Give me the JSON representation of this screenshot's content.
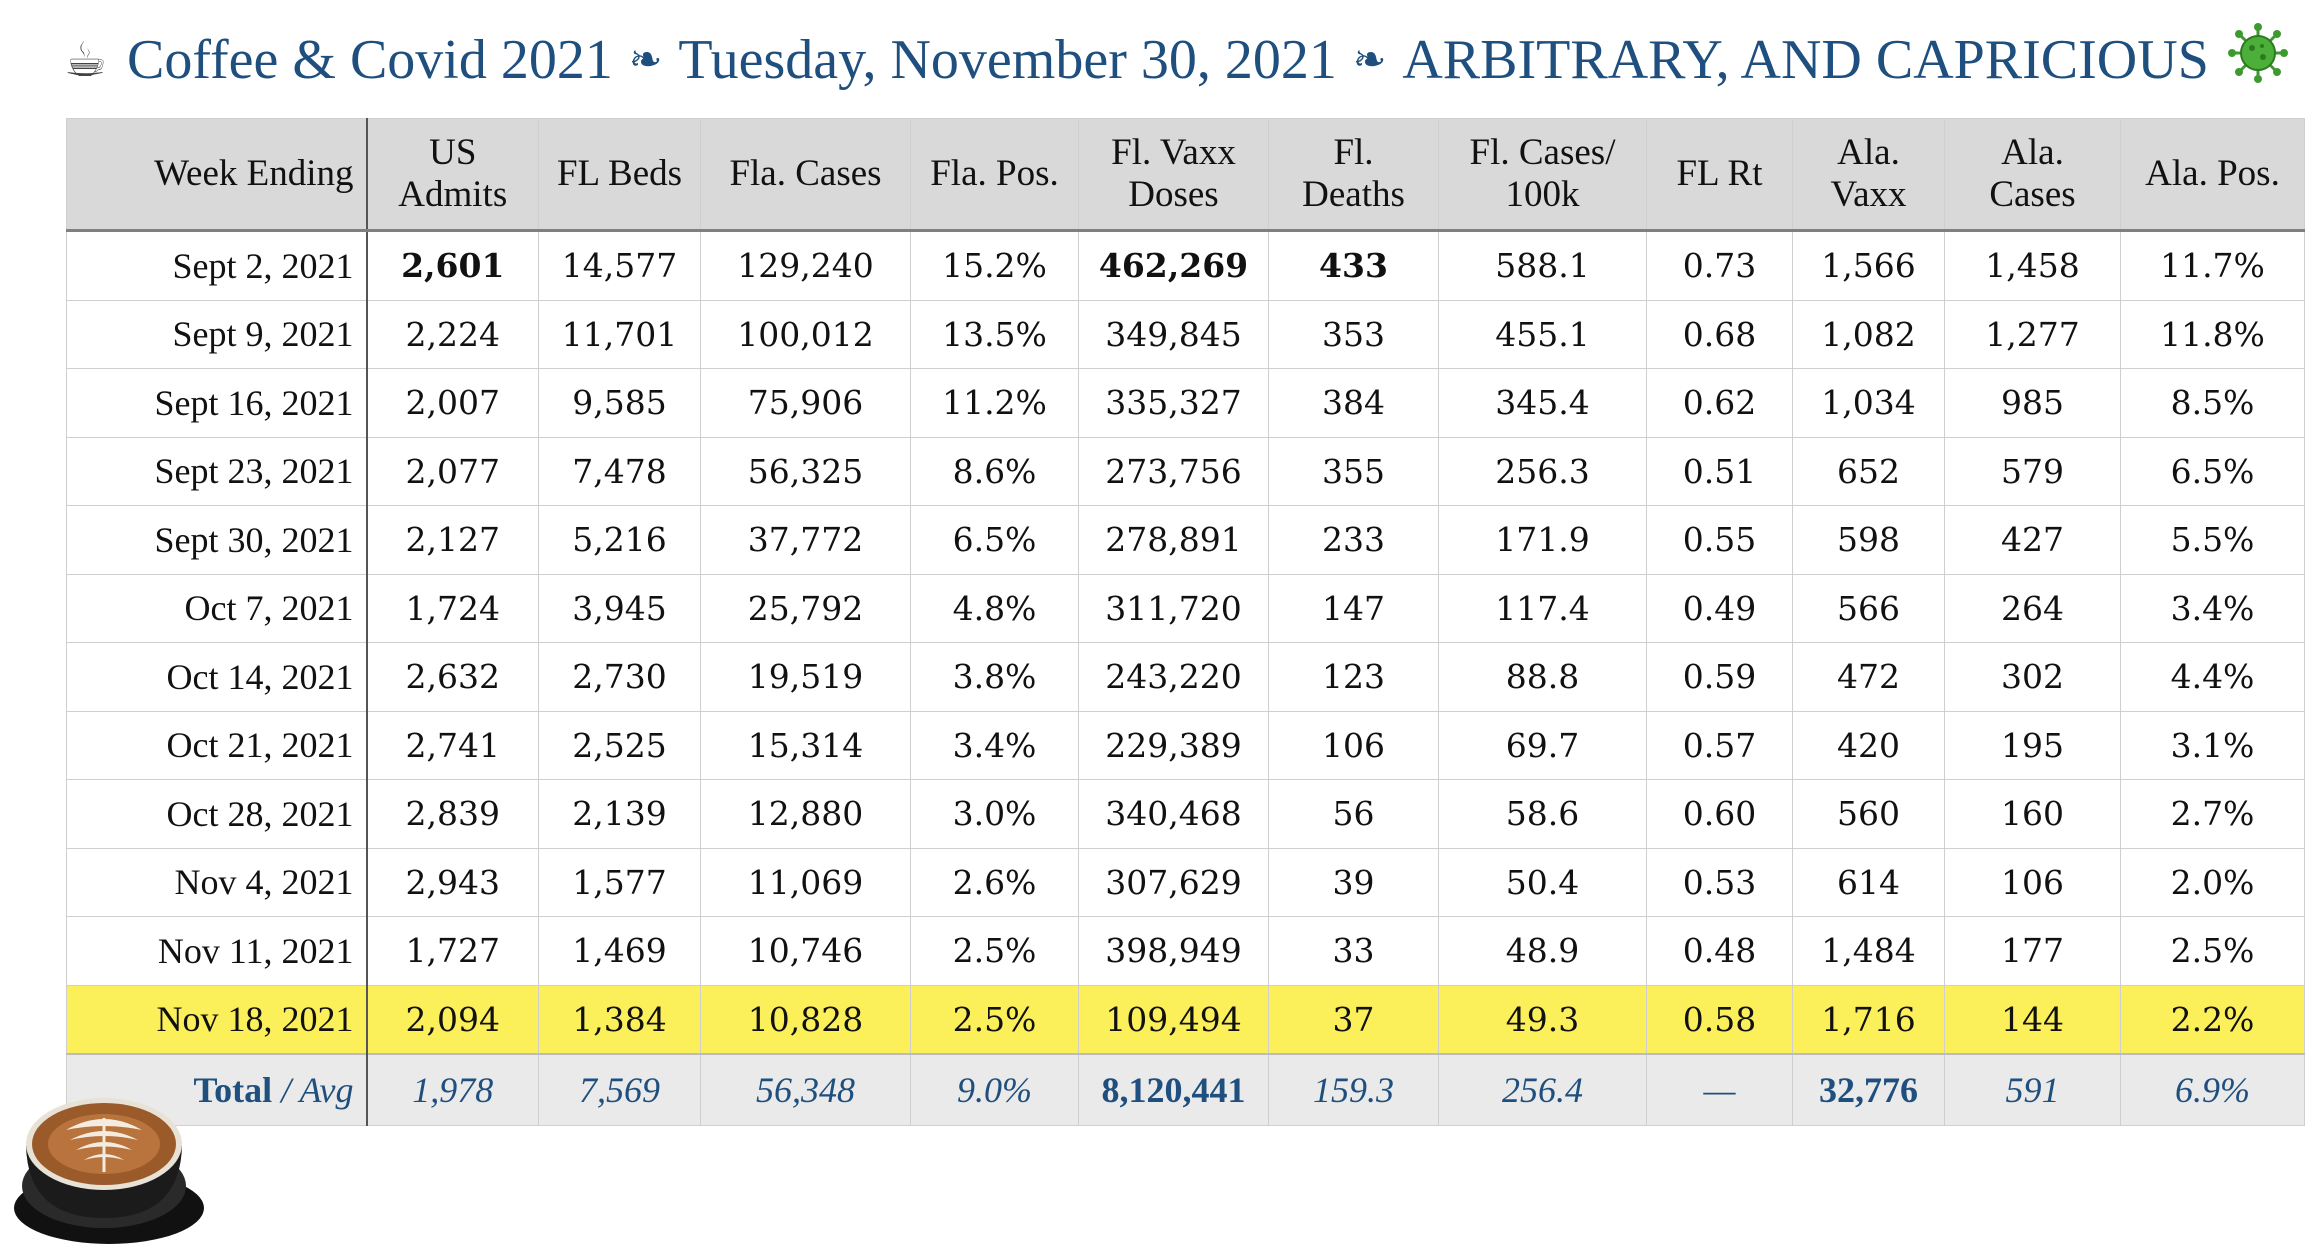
{
  "title": {
    "cup_icon": "coffee-cup-icon",
    "part1": "Coffee & Covid 2021",
    "separator_icon": "fleuron-icon",
    "part2": "Tuesday, November 30, 2021",
    "part3": "ARBITRARY, AND CAPRICIOUS",
    "virus_icon": "virus-icon"
  },
  "table": {
    "headers": [
      [
        "Week Ending"
      ],
      [
        "US",
        "Admits"
      ],
      [
        "FL Beds"
      ],
      [
        "Fla. Cases"
      ],
      [
        "Fla. Pos."
      ],
      [
        "Fl. Vaxx",
        "Doses"
      ],
      [
        "Fl.",
        "Deaths"
      ],
      [
        "Fl. Cases/",
        "100k"
      ],
      [
        "FL Rt"
      ],
      [
        "Ala.",
        "Vaxx"
      ],
      [
        "Ala.",
        "Cases"
      ],
      [
        "Ala. Pos."
      ]
    ],
    "rows": [
      [
        "Sept 2, 2021",
        "2,601",
        "14,577",
        "129,240",
        "15.2%",
        "462,269",
        "433",
        "588.1",
        "0.73",
        "1,566",
        "1,458",
        "11.7%"
      ],
      [
        "Sept 9, 2021",
        "2,224",
        "11,701",
        "100,012",
        "13.5%",
        "349,845",
        "353",
        "455.1",
        "0.68",
        "1,082",
        "1,277",
        "11.8%"
      ],
      [
        "Sept 16, 2021",
        "2,007",
        "9,585",
        "75,906",
        "11.2%",
        "335,327",
        "384",
        "345.4",
        "0.62",
        "1,034",
        "985",
        "8.5%"
      ],
      [
        "Sept 23, 2021",
        "2,077",
        "7,478",
        "56,325",
        "8.6%",
        "273,756",
        "355",
        "256.3",
        "0.51",
        "652",
        "579",
        "6.5%"
      ],
      [
        "Sept 30, 2021",
        "2,127",
        "5,216",
        "37,772",
        "6.5%",
        "278,891",
        "233",
        "171.9",
        "0.55",
        "598",
        "427",
        "5.5%"
      ],
      [
        "Oct 7, 2021",
        "1,724",
        "3,945",
        "25,792",
        "4.8%",
        "311,720",
        "147",
        "117.4",
        "0.49",
        "566",
        "264",
        "3.4%"
      ],
      [
        "Oct 14, 2021",
        "2,632",
        "2,730",
        "19,519",
        "3.8%",
        "243,220",
        "123",
        "88.8",
        "0.59",
        "472",
        "302",
        "4.4%"
      ],
      [
        "Oct 21, 2021",
        "2,741",
        "2,525",
        "15,314",
        "3.4%",
        "229,389",
        "106",
        "69.7",
        "0.57",
        "420",
        "195",
        "3.1%"
      ],
      [
        "Oct 28, 2021",
        "2,839",
        "2,139",
        "12,880",
        "3.0%",
        "340,468",
        "56",
        "58.6",
        "0.60",
        "560",
        "160",
        "2.7%"
      ],
      [
        "Nov 4, 2021",
        "2,943",
        "1,577",
        "11,069",
        "2.6%",
        "307,629",
        "39",
        "50.4",
        "0.53",
        "614",
        "106",
        "2.0%"
      ],
      [
        "Nov 11, 2021",
        "1,727",
        "1,469",
        "10,746",
        "2.5%",
        "398,949",
        "33",
        "48.9",
        "0.48",
        "1,484",
        "177",
        "2.5%"
      ],
      [
        "Nov 18, 2021",
        "2,094",
        "1,384",
        "10,828",
        "2.5%",
        "109,494",
        "37",
        "49.3",
        "0.58",
        "1,716",
        "144",
        "2.2%"
      ]
    ],
    "bold_cells": [
      [
        0,
        1
      ],
      [
        0,
        5
      ],
      [
        0,
        6
      ]
    ],
    "highlight_row": 11,
    "highlight_color": "#fcf05a",
    "total": {
      "label_bold": "Total",
      "label_rest": " / Avg",
      "values": [
        "1,978",
        "7,569",
        "56,348",
        "9.0%",
        "8,120,441",
        "159.3",
        "256.4",
        "—",
        "32,776",
        "591",
        "6.9%"
      ],
      "bold_cols": [
        5,
        9
      ]
    }
  },
  "colors": {
    "title_blue": "#1f4f7e",
    "header_bg": "#d9d9d9",
    "total_bg": "#eaeaea",
    "total_text": "#1f4f7e"
  },
  "decor": {
    "photo_icon": "latte-art-cup-icon"
  }
}
